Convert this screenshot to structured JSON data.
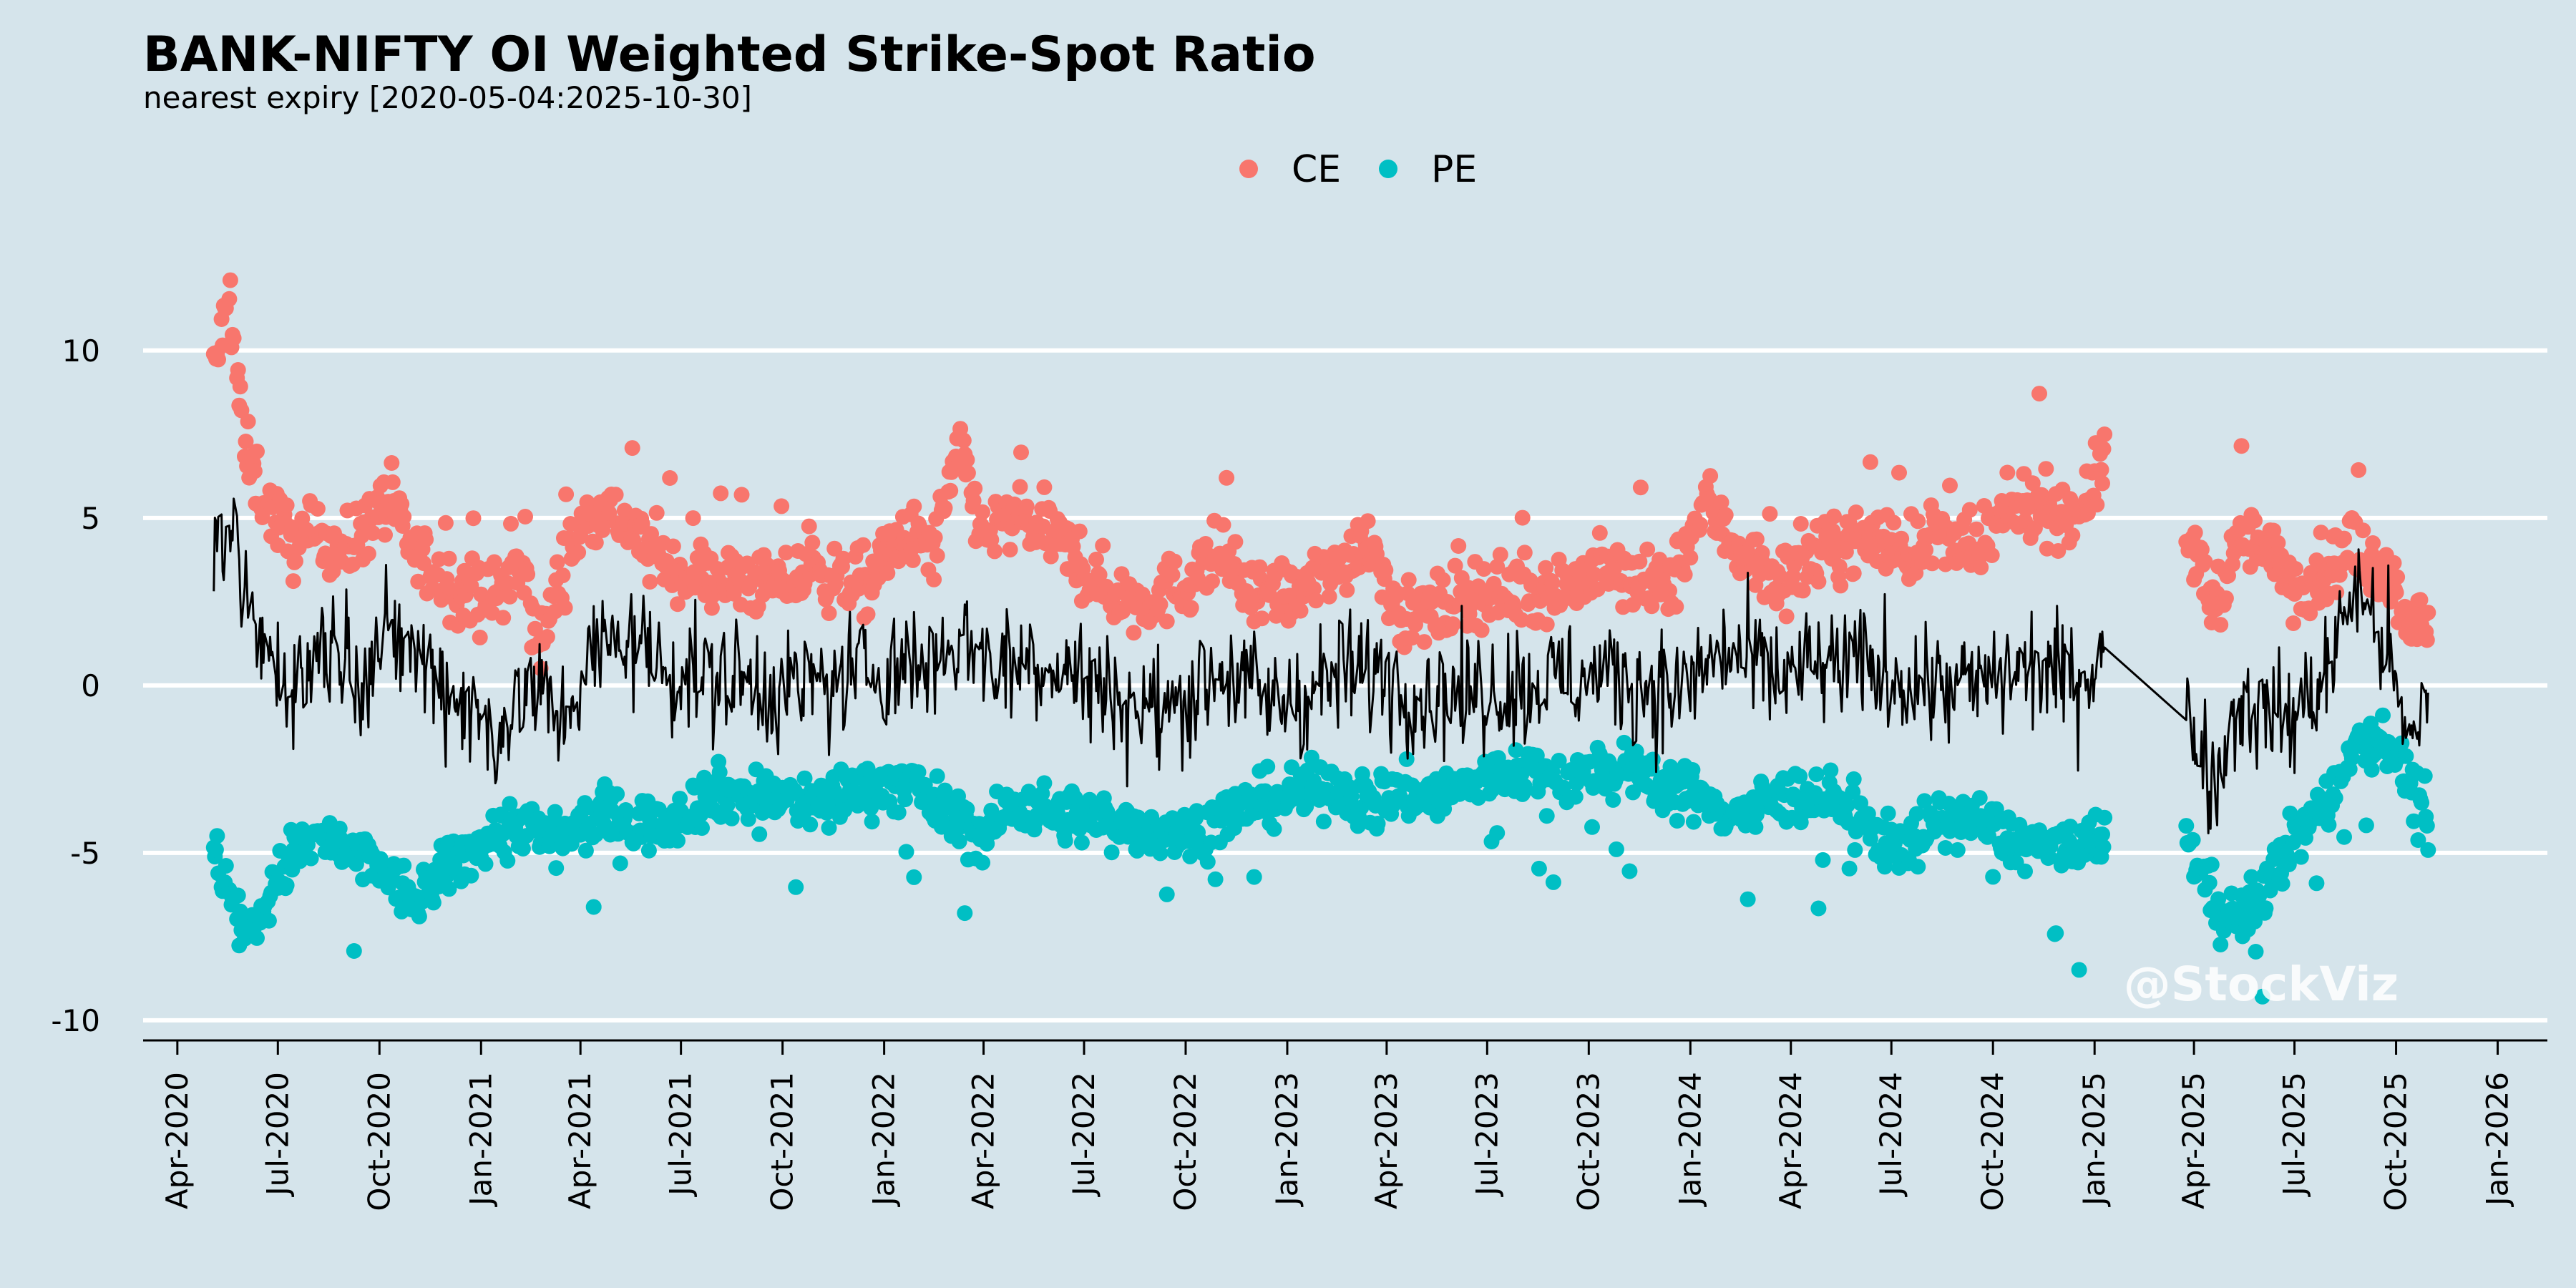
{
  "chart_data": {
    "type": "scatter",
    "title": "BANK-NIFTY OI Weighted Strike-Spot Ratio",
    "subtitle": "nearest expiry [2020-05-04:2025-10-30]",
    "xlabel": "",
    "ylabel": "",
    "xlim": [
      "2020-03-01",
      "2026-02-15"
    ],
    "ylim": [
      -10.6,
      13.2
    ],
    "yticks": [
      -10,
      -5,
      0,
      5,
      10
    ],
    "ytick_labels": [
      "-10",
      "-5",
      "0",
      "5",
      "10"
    ],
    "xticks": [
      "2020-04-01",
      "2020-07-01",
      "2020-10-01",
      "2021-01-01",
      "2021-04-01",
      "2021-07-01",
      "2021-10-01",
      "2022-01-01",
      "2022-04-01",
      "2022-07-01",
      "2022-10-01",
      "2023-01-01",
      "2023-04-01",
      "2023-07-01",
      "2023-10-01",
      "2024-01-01",
      "2024-04-01",
      "2024-07-01",
      "2024-10-01",
      "2025-01-01",
      "2025-04-01",
      "2025-07-01",
      "2025-10-01",
      "2026-01-01"
    ],
    "xtick_labels": [
      "Apr-2020",
      "Jul-2020",
      "Oct-2020",
      "Jan-2021",
      "Apr-2021",
      "Jul-2021",
      "Oct-2021",
      "Jan-2022",
      "Apr-2022",
      "Jul-2022",
      "Oct-2022",
      "Jan-2023",
      "Apr-2023",
      "Jul-2023",
      "Oct-2023",
      "Jan-2024",
      "Apr-2024",
      "Jul-2024",
      "Oct-2024",
      "Jan-2025",
      "Apr-2025",
      "Jul-2025",
      "Oct-2025",
      "Jan-2026"
    ],
    "grid": "horizontal",
    "legend_position": "top-center",
    "gaps": [
      [
        "2025-01-10",
        "2025-03-25"
      ]
    ],
    "series": [
      {
        "name": "CE",
        "kind": "points",
        "color": "#f8766d",
        "anchors": [
          [
            "2020-05-04",
            9.4
          ],
          [
            "2020-05-18",
            11.5
          ],
          [
            "2020-06-01",
            7.0
          ],
          [
            "2020-06-20",
            5.5
          ],
          [
            "2020-07-15",
            4.2
          ],
          [
            "2020-08-10",
            4.5
          ],
          [
            "2020-09-01",
            4.0
          ],
          [
            "2020-10-05",
            5.5
          ],
          [
            "2020-11-01",
            4.0
          ],
          [
            "2020-12-01",
            3.0
          ],
          [
            "2021-01-10",
            2.6
          ],
          [
            "2021-02-05",
            3.5
          ],
          [
            "2021-02-25",
            1.2
          ],
          [
            "2021-03-20",
            4.0
          ],
          [
            "2021-04-20",
            5.5
          ],
          [
            "2021-05-20",
            4.5
          ],
          [
            "2021-06-20",
            3.5
          ],
          [
            "2021-08-01",
            3.2
          ],
          [
            "2021-09-15",
            3.0
          ],
          [
            "2021-11-01",
            3.3
          ],
          [
            "2021-12-15",
            3.0
          ],
          [
            "2022-01-20",
            4.5
          ],
          [
            "2022-02-15",
            4.0
          ],
          [
            "2022-03-10",
            7.0
          ],
          [
            "2022-04-01",
            4.5
          ],
          [
            "2022-05-01",
            5.0
          ],
          [
            "2022-06-01",
            4.5
          ],
          [
            "2022-07-15",
            3.0
          ],
          [
            "2022-08-15",
            2.5
          ],
          [
            "2022-10-01",
            3.0
          ],
          [
            "2022-11-01",
            4.0
          ],
          [
            "2022-12-01",
            2.5
          ],
          [
            "2023-01-15",
            2.8
          ],
          [
            "2023-02-15",
            3.5
          ],
          [
            "2023-03-15",
            4.5
          ],
          [
            "2023-04-15",
            2.0
          ],
          [
            "2023-05-15",
            2.2
          ],
          [
            "2023-06-15",
            2.8
          ],
          [
            "2023-08-01",
            2.8
          ],
          [
            "2023-09-15",
            3.0
          ],
          [
            "2023-10-15",
            3.5
          ],
          [
            "2023-11-15",
            3.0
          ],
          [
            "2023-12-15",
            3.0
          ],
          [
            "2024-01-15",
            5.5
          ],
          [
            "2024-02-15",
            4.0
          ],
          [
            "2024-03-15",
            3.2
          ],
          [
            "2024-04-15",
            3.5
          ],
          [
            "2024-05-15",
            4.2
          ],
          [
            "2024-06-15",
            4.5
          ],
          [
            "2024-07-15",
            4.0
          ],
          [
            "2024-08-15",
            4.5
          ],
          [
            "2024-09-15",
            3.8
          ],
          [
            "2024-10-10",
            5.0
          ],
          [
            "2024-11-10",
            5.5
          ],
          [
            "2024-12-10",
            5.0
          ],
          [
            "2025-01-10",
            6.5
          ],
          [
            "2025-03-25",
            4.5
          ],
          [
            "2025-04-20",
            2.5
          ],
          [
            "2025-05-15",
            4.5
          ],
          [
            "2025-06-05",
            4.0
          ],
          [
            "2025-07-01",
            3.0
          ],
          [
            "2025-08-01",
            3.5
          ],
          [
            "2025-08-20",
            4.0
          ],
          [
            "2025-09-20",
            3.5
          ],
          [
            "2025-10-15",
            2.0
          ],
          [
            "2025-10-30",
            1.5
          ]
        ]
      },
      {
        "name": "PE",
        "kind": "points",
        "color": "#00bfc4",
        "anchors": [
          [
            "2020-05-04",
            -5.0
          ],
          [
            "2020-05-18",
            -6.0
          ],
          [
            "2020-06-01",
            -7.5
          ],
          [
            "2020-06-20",
            -6.5
          ],
          [
            "2020-07-15",
            -5.0
          ],
          [
            "2020-08-10",
            -4.5
          ],
          [
            "2020-09-01",
            -5.0
          ],
          [
            "2020-10-05",
            -5.5
          ],
          [
            "2020-11-01",
            -6.5
          ],
          [
            "2020-12-01",
            -5.5
          ],
          [
            "2021-01-10",
            -4.5
          ],
          [
            "2021-02-05",
            -4.0
          ],
          [
            "2021-02-25",
            -4.5
          ],
          [
            "2021-03-20",
            -4.5
          ],
          [
            "2021-04-20",
            -3.8
          ],
          [
            "2021-05-20",
            -4.2
          ],
          [
            "2021-06-20",
            -4.0
          ],
          [
            "2021-08-01",
            -3.2
          ],
          [
            "2021-09-15",
            -3.3
          ],
          [
            "2021-11-01",
            -3.5
          ],
          [
            "2021-12-15",
            -3.0
          ],
          [
            "2022-01-20",
            -3.0
          ],
          [
            "2022-02-15",
            -3.5
          ],
          [
            "2022-03-10",
            -4.0
          ],
          [
            "2022-04-01",
            -4.5
          ],
          [
            "2022-05-01",
            -3.5
          ],
          [
            "2022-06-01",
            -3.8
          ],
          [
            "2022-07-15",
            -4.0
          ],
          [
            "2022-08-15",
            -4.2
          ],
          [
            "2022-10-01",
            -4.5
          ],
          [
            "2022-11-01",
            -4.0
          ],
          [
            "2022-12-01",
            -3.5
          ],
          [
            "2023-01-15",
            -3.2
          ],
          [
            "2023-02-15",
            -3.0
          ],
          [
            "2023-03-15",
            -3.5
          ],
          [
            "2023-04-15",
            -3.2
          ],
          [
            "2023-05-15",
            -3.3
          ],
          [
            "2023-06-15",
            -3.0
          ],
          [
            "2023-08-01",
            -2.5
          ],
          [
            "2023-09-15",
            -2.8
          ],
          [
            "2023-10-15",
            -2.5
          ],
          [
            "2023-11-15",
            -2.7
          ],
          [
            "2023-12-15",
            -3.0
          ],
          [
            "2024-01-15",
            -3.5
          ],
          [
            "2024-02-15",
            -3.8
          ],
          [
            "2024-03-15",
            -3.5
          ],
          [
            "2024-04-15",
            -3.2
          ],
          [
            "2024-05-15",
            -3.5
          ],
          [
            "2024-06-15",
            -4.5
          ],
          [
            "2024-07-15",
            -4.8
          ],
          [
            "2024-08-15",
            -4.0
          ],
          [
            "2024-09-15",
            -4.0
          ],
          [
            "2024-10-10",
            -4.5
          ],
          [
            "2024-11-10",
            -4.8
          ],
          [
            "2024-12-10",
            -5.0
          ],
          [
            "2025-01-10",
            -4.5
          ],
          [
            "2025-03-25",
            -4.5
          ],
          [
            "2025-04-20",
            -6.5
          ],
          [
            "2025-05-15",
            -7.0
          ],
          [
            "2025-06-05",
            -6.0
          ],
          [
            "2025-07-01",
            -4.5
          ],
          [
            "2025-08-01",
            -3.5
          ],
          [
            "2025-08-20",
            -1.8
          ],
          [
            "2025-09-20",
            -1.5
          ],
          [
            "2025-10-15",
            -3.0
          ],
          [
            "2025-10-30",
            -4.0
          ]
        ]
      },
      {
        "name": "",
        "kind": "line",
        "color": "#000000",
        "anchors": [
          [
            "2020-05-04",
            3.0
          ],
          [
            "2020-05-20",
            4.5
          ],
          [
            "2020-06-10",
            1.5
          ],
          [
            "2020-07-15",
            0.0
          ],
          [
            "2020-08-15",
            1.5
          ],
          [
            "2020-09-15",
            0.5
          ],
          [
            "2020-10-15",
            1.5
          ],
          [
            "2020-11-15",
            0.5
          ],
          [
            "2020-12-15",
            -0.5
          ],
          [
            "2021-01-15",
            -1.5
          ],
          [
            "2021-02-15",
            0.0
          ],
          [
            "2021-03-15",
            -1.0
          ],
          [
            "2021-04-15",
            1.0
          ],
          [
            "2021-05-15",
            1.5
          ],
          [
            "2021-06-15",
            0.5
          ],
          [
            "2021-08-01",
            0.2
          ],
          [
            "2021-09-15",
            0.0
          ],
          [
            "2021-11-01",
            0.0
          ],
          [
            "2021-12-15",
            0.5
          ],
          [
            "2022-02-01",
            0.5
          ],
          [
            "2022-03-15",
            1.5
          ],
          [
            "2022-04-15",
            0.5
          ],
          [
            "2022-05-15",
            0.8
          ],
          [
            "2022-06-15",
            0.5
          ],
          [
            "2022-08-01",
            -0.5
          ],
          [
            "2022-09-15",
            -0.8
          ],
          [
            "2022-11-01",
            0.5
          ],
          [
            "2022-12-15",
            -0.5
          ],
          [
            "2023-02-01",
            0.0
          ],
          [
            "2023-03-15",
            0.5
          ],
          [
            "2023-05-01",
            -0.3
          ],
          [
            "2023-06-15",
            -0.2
          ],
          [
            "2023-08-01",
            0.0
          ],
          [
            "2023-09-15",
            0.2
          ],
          [
            "2023-11-01",
            0.3
          ],
          [
            "2023-12-15",
            -0.2
          ],
          [
            "2024-02-01",
            1.0
          ],
          [
            "2024-03-15",
            0.3
          ],
          [
            "2024-05-01",
            0.5
          ],
          [
            "2024-06-15",
            0.5
          ],
          [
            "2024-08-01",
            0.0
          ],
          [
            "2024-09-15",
            0.0
          ],
          [
            "2024-11-01",
            0.5
          ],
          [
            "2024-12-15",
            0.2
          ],
          [
            "2025-01-10",
            1.0
          ],
          [
            "2025-02-10",
            2.5
          ],
          [
            "2025-03-25",
            -0.8
          ],
          [
            "2025-04-20",
            -3.0
          ],
          [
            "2025-05-10",
            -0.5
          ],
          [
            "2025-06-05",
            -0.8
          ],
          [
            "2025-07-01",
            -1.0
          ],
          [
            "2025-08-01",
            0.5
          ],
          [
            "2025-08-25",
            3.0
          ],
          [
            "2025-09-25",
            1.0
          ],
          [
            "2025-10-10",
            -2.0
          ],
          [
            "2025-10-30",
            -0.3
          ]
        ]
      }
    ]
  },
  "watermark": "@StockViz"
}
